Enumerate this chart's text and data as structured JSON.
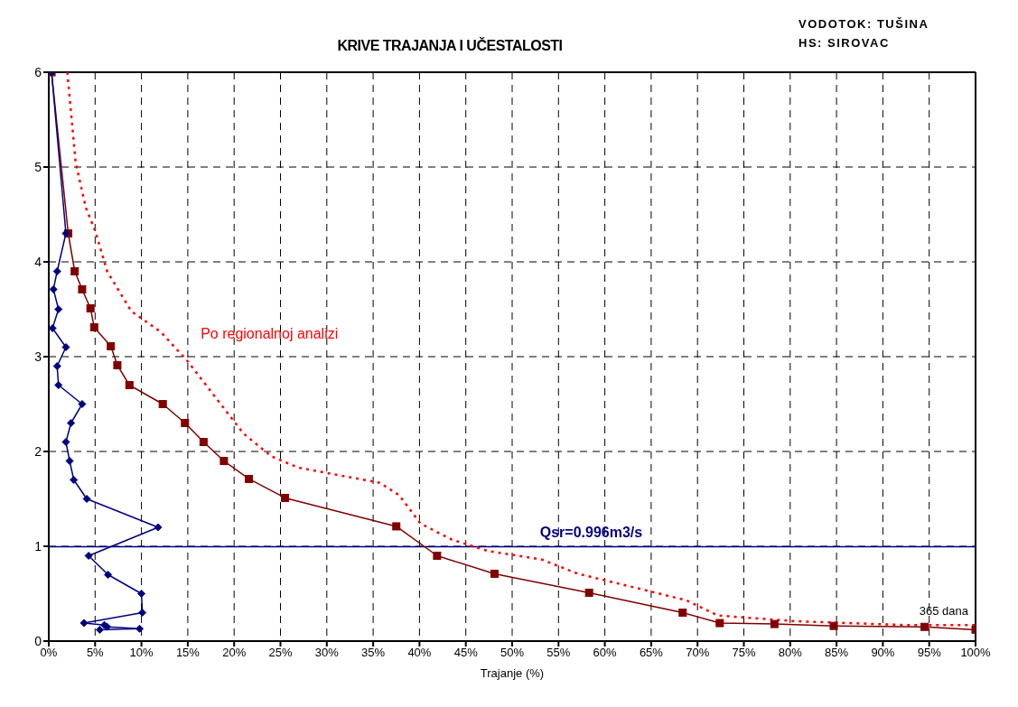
{
  "chart_data": {
    "type": "line",
    "title": "KRIVE TRAJANJA I  UČESTALOSTI",
    "xlabel": "Trajanje (%)",
    "annotations": [
      "VODOTOK: TUŠINA",
      "HS: SIROVAC",
      {
        "text": "365 dana",
        "x": 100,
        "y": 0.12
      }
    ],
    "xlim": [
      0,
      100
    ],
    "ylim": [
      0,
      6
    ],
    "xticks": [
      {
        "value": 0,
        "label": "0%"
      },
      {
        "value": 5,
        "label": "5%"
      },
      {
        "value": 10,
        "label": "10%"
      },
      {
        "value": 15,
        "label": "15%"
      },
      {
        "value": 20,
        "label": "20%"
      },
      {
        "value": 25,
        "label": "25%"
      },
      {
        "value": 30,
        "label": "30%"
      },
      {
        "value": 35,
        "label": "35%"
      },
      {
        "value": 40,
        "label": "40%"
      },
      {
        "value": 45,
        "label": "45%"
      },
      {
        "value": 50,
        "label": "50%"
      },
      {
        "value": 55,
        "label": "55%"
      },
      {
        "value": 60,
        "label": "60%"
      },
      {
        "value": 65,
        "label": "65%"
      },
      {
        "value": 70,
        "label": "70%"
      },
      {
        "value": 75,
        "label": "75%"
      },
      {
        "value": 80,
        "label": "80%"
      },
      {
        "value": 85,
        "label": "85%"
      },
      {
        "value": 90,
        "label": "90%"
      },
      {
        "value": 95,
        "label": "95%"
      },
      {
        "value": 100,
        "label": "100%"
      }
    ],
    "yticks": [
      0,
      1,
      2,
      3,
      4,
      5,
      6
    ],
    "grid": true,
    "ref_lines": [
      {
        "axis": "y",
        "value": 0.996,
        "label": "Qsr=0.996m3/s",
        "color": "#000080"
      }
    ],
    "series": [
      {
        "color": "#000080",
        "marker": "diamond",
        "line_style": "solid",
        "x": [
          0.3,
          1.85,
          0.9,
          0.5,
          1.05,
          0.4,
          1.85,
          0.9,
          1.05,
          3.6,
          2.4,
          1.85,
          2.25,
          2.7,
          4.1,
          11.8,
          4.3,
          6.4,
          10.0,
          10.1,
          3.8,
          6.0,
          6.3,
          9.8,
          5.5
        ],
        "values": [
          6,
          4.3,
          3.9,
          3.71,
          3.5,
          3.3,
          3.1,
          2.9,
          2.7,
          2.5,
          2.3,
          2.1,
          1.9,
          1.7,
          1.5,
          1.2,
          0.9,
          0.7,
          0.5,
          0.3,
          0.19,
          0.17,
          0.15,
          0.13,
          0.12
        ]
      },
      {
        "color": "#800000",
        "marker": "square",
        "line_style": "solid",
        "x": [
          0.3,
          2.1,
          2.8,
          3.6,
          4.5,
          4.9,
          6.7,
          7.4,
          8.7,
          12.3,
          14.7,
          16.7,
          18.9,
          21.6,
          25.5,
          37.5,
          41.9,
          48.1,
          58.3,
          68.4,
          72.4,
          78.3,
          84.7,
          94.5,
          100
        ],
        "values": [
          6,
          4.3,
          3.9,
          3.71,
          3.51,
          3.31,
          3.11,
          2.91,
          2.7,
          2.5,
          2.3,
          2.1,
          1.9,
          1.71,
          1.51,
          1.21,
          0.9,
          0.71,
          0.51,
          0.3,
          0.19,
          0.18,
          0.16,
          0.15,
          0.12
        ]
      },
      {
        "name": "Po regionalnoj analizi",
        "color": "#ff0000",
        "marker": "none",
        "line_style": "dotted",
        "x": [
          2.0,
          2.9,
          4.0,
          5.0,
          6.3,
          8.9,
          12.1,
          15.0,
          19.1,
          21.0,
          24.0,
          26.9,
          35.7,
          37.8,
          40.1,
          43.5,
          47.4,
          53.2,
          57.1,
          63.0,
          68.8,
          72.2,
          80.5,
          92.2,
          100
        ],
        "values": [
          6,
          5.05,
          4.57,
          4.33,
          3.9,
          3.48,
          3.26,
          2.95,
          2.43,
          2.19,
          1.95,
          1.83,
          1.67,
          1.54,
          1.24,
          1.07,
          0.95,
          0.86,
          0.71,
          0.57,
          0.43,
          0.27,
          0.21,
          0.17,
          0.17
        ]
      }
    ]
  }
}
